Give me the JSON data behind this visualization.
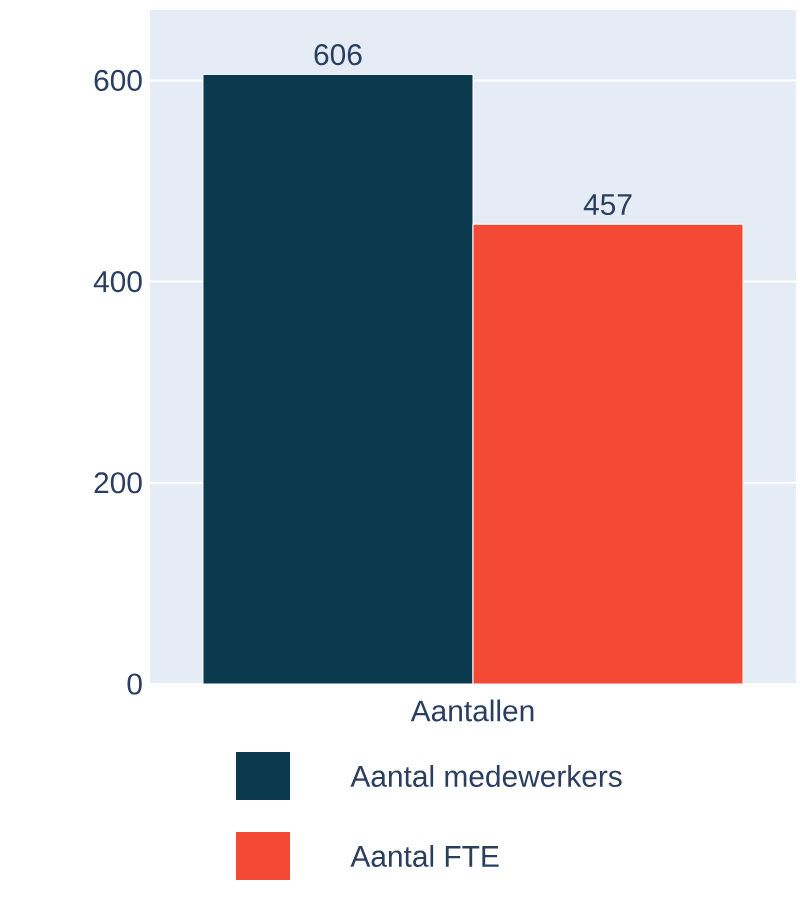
{
  "chart_data": {
    "type": "bar",
    "categories": [
      "Aantallen"
    ],
    "series": [
      {
        "name": "Aantal medewerkers",
        "color": "#0b3a4e",
        "values": [
          606
        ]
      },
      {
        "name": "Aantal FTE",
        "color": "#f44a35",
        "values": [
          457
        ]
      }
    ],
    "ylim": [
      0,
      670
    ],
    "yticks": [
      0,
      200,
      400,
      600
    ],
    "grid": "y",
    "legend": "bottom",
    "data_labels": true
  }
}
